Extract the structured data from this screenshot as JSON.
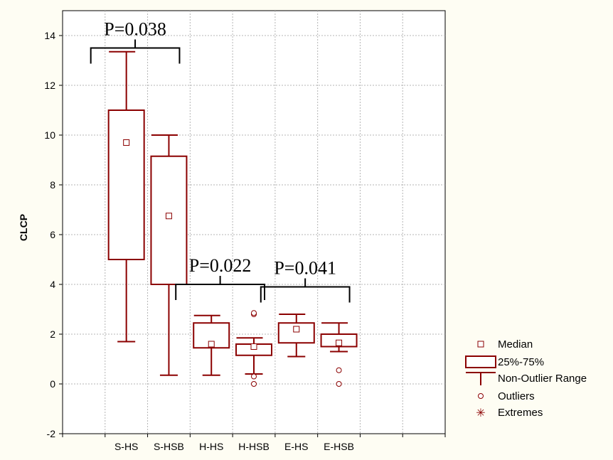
{
  "chart_data": {
    "type": "box",
    "categories": [
      "S-HS",
      "S-HSB",
      "H-HS",
      "H-HSB",
      "E-HS",
      "E-HSB"
    ],
    "ylabel": "CLCP",
    "xlabel": "",
    "ylim": [
      -2,
      15
    ],
    "yticks": [
      -2,
      0,
      2,
      4,
      6,
      8,
      10,
      12,
      14
    ],
    "grid": true,
    "color": "#8b0000",
    "boxes": [
      {
        "category": "S-HS",
        "median": 9.7,
        "q1": 5.0,
        "q3": 11.0,
        "min": 1.7,
        "max": 13.35,
        "outliers": []
      },
      {
        "category": "S-HSB",
        "median": 6.75,
        "q1": 4.0,
        "q3": 9.15,
        "min": 0.35,
        "max": 10.0,
        "outliers": []
      },
      {
        "category": "H-HS",
        "median": 1.6,
        "q1": 1.45,
        "q3": 2.45,
        "min": 0.35,
        "max": 2.75,
        "outliers": []
      },
      {
        "category": "H-HSB",
        "median": 1.5,
        "q1": 1.15,
        "q3": 1.6,
        "min": 0.4,
        "max": 1.85,
        "outliers": [
          2.8,
          2.85,
          0.3,
          0.0
        ]
      },
      {
        "category": "E-HS",
        "median": 2.2,
        "q1": 1.65,
        "q3": 2.45,
        "min": 1.1,
        "max": 2.8,
        "outliers": []
      },
      {
        "category": "E-HSB",
        "median": 1.65,
        "q1": 1.5,
        "q3": 2.0,
        "min": 1.3,
        "max": 2.45,
        "outliers": [
          0.55,
          0.0
        ]
      }
    ],
    "annotations": [
      {
        "text": "P=0.038",
        "from": "S-HS",
        "to": "S-HSB",
        "y": 13.5
      },
      {
        "text": "P=0.022",
        "from": "H-HS",
        "to": "H-HSB",
        "y": 4.0
      },
      {
        "text": "P=0.041",
        "from": "E-HS",
        "to": "E-HSB",
        "y": 3.9
      }
    ],
    "legend": {
      "placement": "right-bottom",
      "entries": [
        "Median",
        "25%-75%",
        "Non-Outlier Range",
        "Outliers",
        "Extremes"
      ]
    }
  }
}
